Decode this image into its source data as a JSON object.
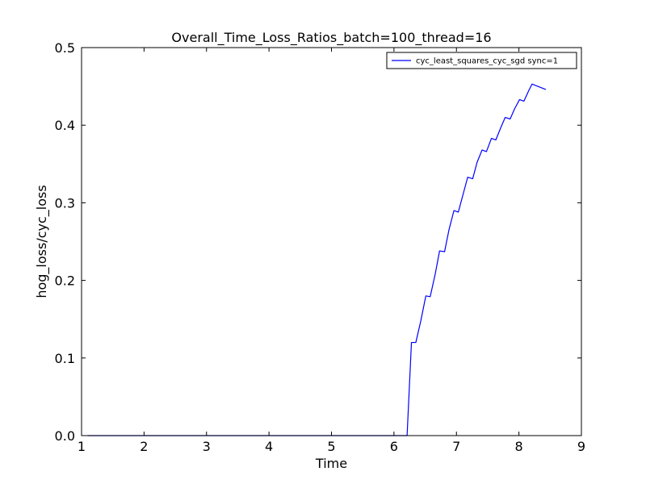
{
  "chart_data": {
    "type": "line",
    "title": "Overall_Time_Loss_Ratios_batch=100_thread=16",
    "xlabel": "Time",
    "ylabel": "hog_loss/cyc_loss",
    "xlim": [
      1,
      9
    ],
    "ylim": [
      0.0,
      0.5
    ],
    "xticks": [
      1,
      2,
      3,
      4,
      5,
      6,
      7,
      8,
      9
    ],
    "xtick_labels": [
      "1",
      "2",
      "3",
      "4",
      "5",
      "6",
      "7",
      "8",
      "9"
    ],
    "yticks": [
      0.0,
      0.1,
      0.2,
      0.3,
      0.4,
      0.5
    ],
    "ytick_labels": [
      "0.0",
      "0.1",
      "0.2",
      "0.3",
      "0.4",
      "0.5"
    ],
    "grid": false,
    "legend": {
      "placement": "top-right",
      "entries": [
        "cyc_least_squares_cyc_sgd sync=1"
      ]
    },
    "series": [
      {
        "name": "cyc_least_squares_cyc_sgd sync=1",
        "color": "#0000ff",
        "x": [
          1.1,
          6.21,
          6.28,
          6.35,
          6.43,
          6.51,
          6.58,
          6.66,
          6.73,
          6.81,
          6.88,
          6.96,
          7.03,
          7.11,
          7.18,
          7.26,
          7.33,
          7.41,
          7.48,
          7.56,
          7.63,
          7.71,
          7.78,
          7.86,
          7.93,
          8.01,
          8.08,
          8.16,
          8.21,
          8.43
        ],
        "y": [
          0.0,
          0.0,
          0.12,
          0.12,
          0.148,
          0.18,
          0.179,
          0.208,
          0.238,
          0.237,
          0.265,
          0.29,
          0.288,
          0.312,
          0.333,
          0.331,
          0.352,
          0.368,
          0.366,
          0.383,
          0.381,
          0.397,
          0.41,
          0.408,
          0.421,
          0.433,
          0.431,
          0.445,
          0.453,
          0.446
        ]
      }
    ]
  }
}
